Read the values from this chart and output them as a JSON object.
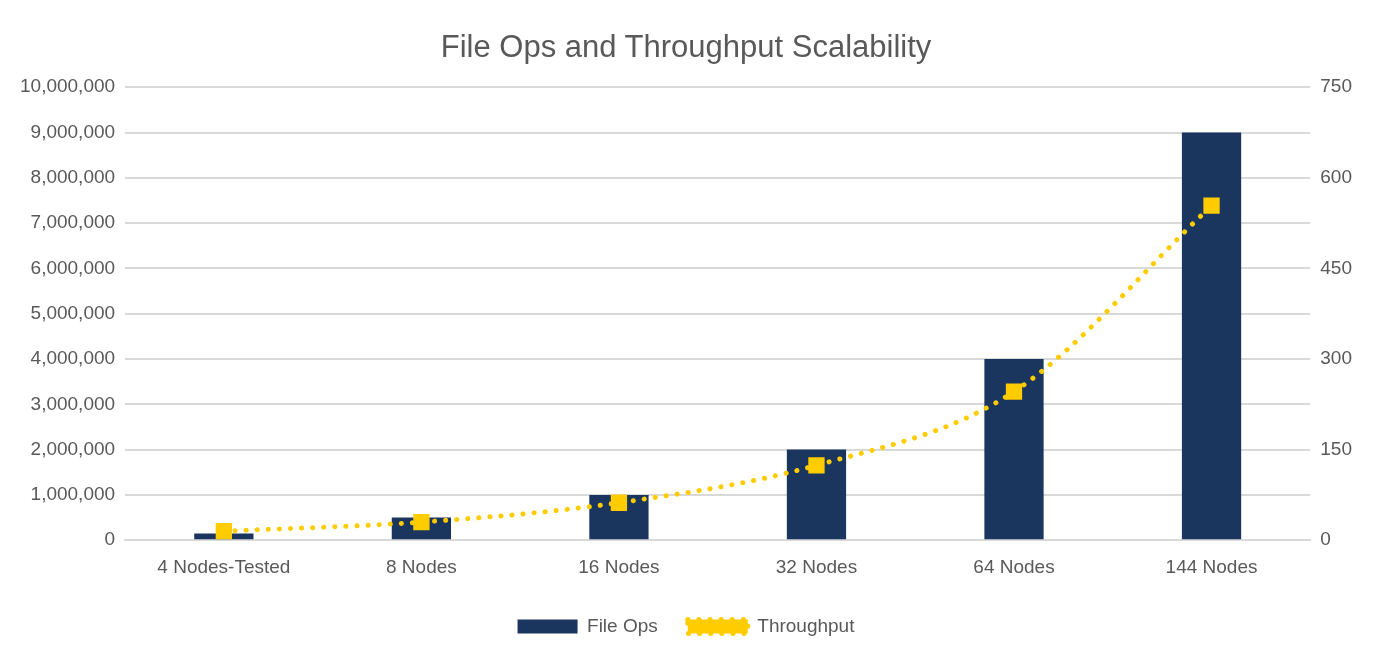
{
  "chart_data": {
    "type": "bar",
    "title": "File Ops and Throughput Scalability",
    "categories": [
      "4 Nodes-Tested",
      "8 Nodes",
      "16 Nodes",
      "32 Nodes",
      "64 Nodes",
      "144 Nodes"
    ],
    "series": [
      {
        "name": "File Ops",
        "color": "#1a355e",
        "values": [
          150000,
          500000,
          1000000,
          2000000,
          4000000,
          9000000
        ]
      },
      {
        "name": "Throughput",
        "type": "line",
        "axis": "y2",
        "color": "#ffcc00",
        "line_style": "dotted",
        "marker": "square",
        "values": [
          15,
          30,
          62,
          124,
          246,
          554
        ]
      }
    ],
    "ylim": [
      0,
      10000000
    ],
    "yticks": [
      0,
      {
        "value": 1000000,
        "label": "1,000,000"
      },
      {
        "value": 2000000,
        "label": "2,000,000"
      },
      {
        "value": 3000000,
        "label": "3,000,000"
      },
      {
        "value": 4000000,
        "label": "4,000,000"
      },
      {
        "value": 5000000,
        "label": "5,000,000"
      },
      {
        "value": 6000000,
        "label": "6,000,000"
      },
      {
        "value": 7000000,
        "label": "7,000,000"
      },
      {
        "value": 8000000,
        "label": "8,000,000"
      },
      {
        "value": 9000000,
        "label": "9,000,000"
      },
      {
        "value": 10000000,
        "label": "10,000,000"
      }
    ],
    "y2lim": [
      0,
      750
    ],
    "y2ticks": [
      0,
      150,
      300,
      450,
      600,
      750
    ],
    "grid": "y",
    "legend": "bottom"
  }
}
